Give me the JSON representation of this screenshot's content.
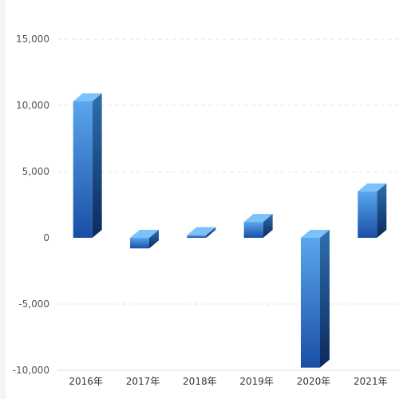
{
  "chart_data": {
    "type": "bar",
    "style": "3d-columns",
    "categories": [
      "2016年",
      "2017年",
      "2018年",
      "2019年",
      "2020年",
      "2021年"
    ],
    "values": [
      10300,
      -800,
      200,
      1200,
      -9800,
      3500
    ],
    "title": "",
    "xlabel": "",
    "ylabel": "",
    "ylim": [
      -10000,
      15000
    ],
    "yticks": [
      15000,
      10000,
      5000,
      0,
      -5000,
      -10000
    ],
    "ytick_labels": [
      "15,000",
      "10,000",
      "5,000",
      "0",
      "-5,000",
      "-10,000"
    ],
    "grid": true,
    "legend": "none",
    "colors": {
      "front_top": "#5aa6ec",
      "front_bottom": "#1a4ea6",
      "side_top": "#2f6fae",
      "side_bottom": "#0a2a5e",
      "top_face": "#7cc1f7",
      "grid": "#e6e6e6",
      "axis": "#dddddd"
    }
  }
}
